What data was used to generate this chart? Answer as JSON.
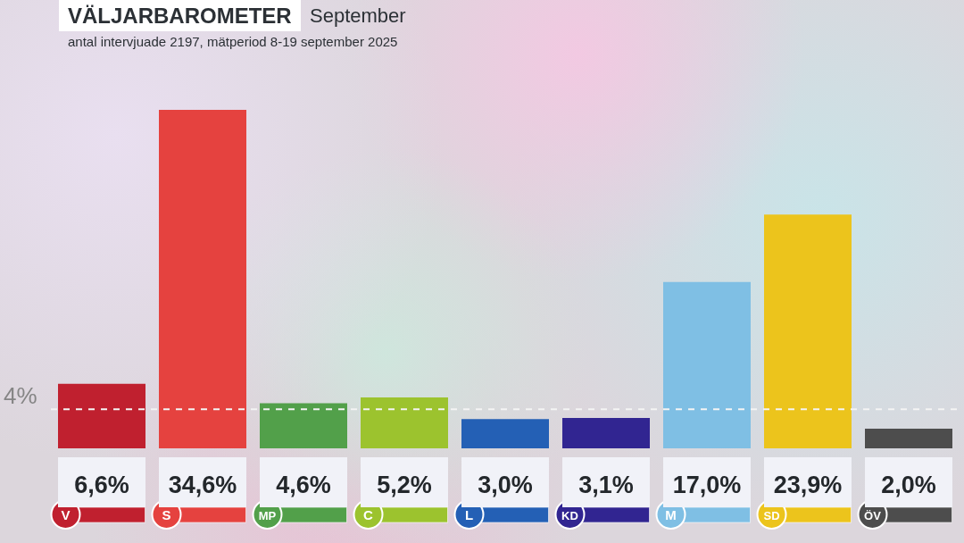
{
  "chart_data": {
    "type": "bar",
    "title": "VÄLJARBAROMETER",
    "subtitle": "September",
    "annotations": [
      "antal intervjuade 2197, mätperiod 8-19 september 2025"
    ],
    "categories": [
      "V",
      "S",
      "MP",
      "C",
      "L",
      "KD",
      "M",
      "SD",
      "ÖV"
    ],
    "values": [
      6.6,
      34.6,
      4.6,
      5.2,
      3.0,
      3.1,
      17.0,
      23.9,
      2.0
    ],
    "colors": [
      "#c0202f",
      "#e5423f",
      "#52a04a",
      "#9cc32e",
      "#2460b5",
      "#312591",
      "#7fbfe4",
      "#ecc41c",
      "#4d4d4d"
    ],
    "value_labels": [
      "6,6%",
      "34,6%",
      "4,6%",
      "5,2%",
      "3,0%",
      "3,1%",
      "17,0%",
      "23,9%",
      "2,0%"
    ],
    "ref_lines": [
      {
        "axis": "y",
        "value": 4,
        "label": "4%",
        "color": "#f4f4f4",
        "line_style": "dashed"
      }
    ]
  }
}
